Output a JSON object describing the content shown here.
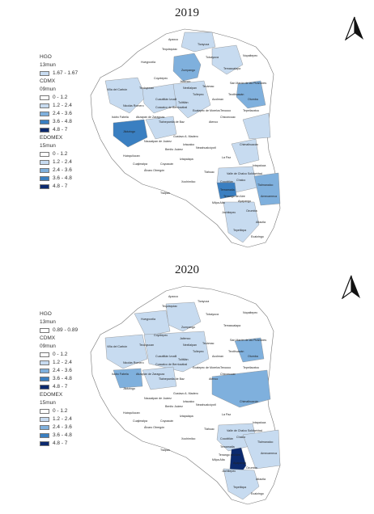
{
  "panels": [
    {
      "year": "2019",
      "legend": {
        "hgo_title": "HGO",
        "hgo_sub": "13mun",
        "hgo_classes": [
          {
            "label": "1.67 - 1.67",
            "color": "#c7dbf0"
          }
        ],
        "cdmx_title": "CDMX",
        "cdmx_sub": "09mun",
        "cdmx_classes": [
          {
            "label": "0 - 1.2",
            "color": "#ffffff"
          },
          {
            "label": "1.2 - 2.4",
            "color": "#c7dbf0"
          },
          {
            "label": "2.4 - 3.6",
            "color": "#7fb0dd"
          },
          {
            "label": "3.6 - 4.8",
            "color": "#3a7fc1"
          },
          {
            "label": "4.8 - 7",
            "color": "#0c2a6e"
          }
        ],
        "edomex_title": "EDOMEX",
        "edomex_sub": "15mun",
        "edomex_classes": [
          {
            "label": "0 - 1.2",
            "color": "#ffffff"
          },
          {
            "label": "1.2 - 2.4",
            "color": "#c7dbf0"
          },
          {
            "label": "2.4 - 3.6",
            "color": "#7fb0dd"
          },
          {
            "label": "3.6 - 4.8",
            "color": "#3a7fc1"
          },
          {
            "label": "4.8 - 7",
            "color": "#0c2a6e"
          }
        ]
      },
      "places": [
        "Apaxco",
        "Tequixquiac",
        "Hueypoxtla",
        "Zumpango",
        "Tizayuca",
        "Tolcayuca",
        "Temascalapa",
        "Nopaltepec",
        "Coyotepec",
        "Jaltenco",
        "Nextlalpan",
        "San Martín de las Pirámides",
        "Villa del Carbón",
        "Teoloyucan",
        "Tultepec",
        "Tecámac",
        "Otumba",
        "Cuautitlán Izcalli",
        "Tultitlán",
        "Acolman",
        "Teotihuacán",
        "Nicolás Romero",
        "Coacalco de Berriozábal",
        "Ecatepec de Morelos",
        "Tepetlaoxtoc",
        "Isidro Fabela",
        "Atizapán de Zaragoza",
        "Tlalnepantla de Baz",
        "Texcoco",
        "Atenco",
        "Chiconcuac",
        "Jilotzingo",
        "Naucalpan de Juárez",
        "Gustavo A. Madero",
        "Nezahualcóyotl",
        "Chimalhuacán",
        "Huixquilucan",
        "Cuajimalpa",
        "Álvaro Obregón",
        "Benito Juárez",
        "Iztacalco",
        "Coyoacán",
        "Iztapalapa",
        "Tlalpan",
        "Xochimilco",
        "Tláhuac",
        "Milpa Alta",
        "Valle de Chalco Solidaridad",
        "Chalco",
        "Ixtapaluca",
        "Temamatla",
        "Tlalmanalco",
        "Amecameca",
        "Ayapango",
        "Cocotitlán",
        "Juchitepec",
        "Tenango del Aire",
        "Atlautla",
        "Ozumba",
        "Ecatzingo",
        "Tepetlixpa",
        "La Paz"
      ]
    },
    {
      "year": "2020",
      "legend": {
        "hgo_title": "HGO",
        "hgo_sub": "13mun",
        "hgo_classes": [
          {
            "label": "0.89 - 0.89",
            "color": "#ffffff"
          }
        ],
        "cdmx_title": "CDMX",
        "cdmx_sub": "09mun",
        "cdmx_classes": [
          {
            "label": "0 - 1.2",
            "color": "#ffffff"
          },
          {
            "label": "1.2 - 2.4",
            "color": "#c7dbf0"
          },
          {
            "label": "2.4 - 3.6",
            "color": "#7fb0dd"
          },
          {
            "label": "3.6 - 4.8",
            "color": "#3a7fc1"
          },
          {
            "label": "4.8 - 7",
            "color": "#0c2a6e"
          }
        ],
        "edomex_title": "EDOMEX",
        "edomex_sub": "15mun",
        "edomex_classes": [
          {
            "label": "0 - 1.2",
            "color": "#ffffff"
          },
          {
            "label": "1.2 - 2.4",
            "color": "#c7dbf0"
          },
          {
            "label": "2.4 - 3.6",
            "color": "#7fb0dd"
          },
          {
            "label": "3.6 - 4.8",
            "color": "#3a7fc1"
          },
          {
            "label": "4.8 - 7",
            "color": "#0c2a6e"
          }
        ]
      },
      "places": [
        "Apaxco",
        "Tequixquiac",
        "Hueypoxtla",
        "Zumpango",
        "Tizayuca",
        "Tolcayuca",
        "Temascalapa",
        "Nopaltepec",
        "Coyotepec",
        "Jaltenco",
        "Nextlalpan",
        "San Martín de las Pirámides",
        "Villa del Carbón",
        "Teoloyucan",
        "Tultepec",
        "Tecámac",
        "Otumba",
        "Cuautitlán Izcalli",
        "Tultitlán",
        "Acolman",
        "Teotihuacán",
        "Nicolás Romero",
        "Coacalco de Berriozábal",
        "Ecatepec de Morelos",
        "Tepetlaoxtoc",
        "Isidro Fabela",
        "Atizapán de Zaragoza",
        "Tlalnepantla de Baz",
        "Texcoco",
        "Atenco",
        "Chiconcuac",
        "Jilotzingo",
        "Naucalpan de Juárez",
        "Gustavo A. Madero",
        "Nezahualcóyotl",
        "Chimalhuacán",
        "Huixquilucan",
        "Cuajimalpa",
        "Álvaro Obregón",
        "Benito Juárez",
        "Iztacalco",
        "Coyoacán",
        "Iztapalapa",
        "Tlalpan",
        "Xochimilco",
        "Tláhuac",
        "Milpa Alta",
        "Valle de Chalco Solidaridad",
        "Chalco",
        "Ixtapaluca",
        "Temamatla",
        "Tlalmanalco",
        "Amecameca",
        "Ayapango",
        "Cocotitlán",
        "Juchitepec",
        "Tenango del Aire",
        "Atlautla",
        "Ozumba",
        "Ecatzingo",
        "Tepetlixpa",
        "La Paz"
      ]
    }
  ]
}
